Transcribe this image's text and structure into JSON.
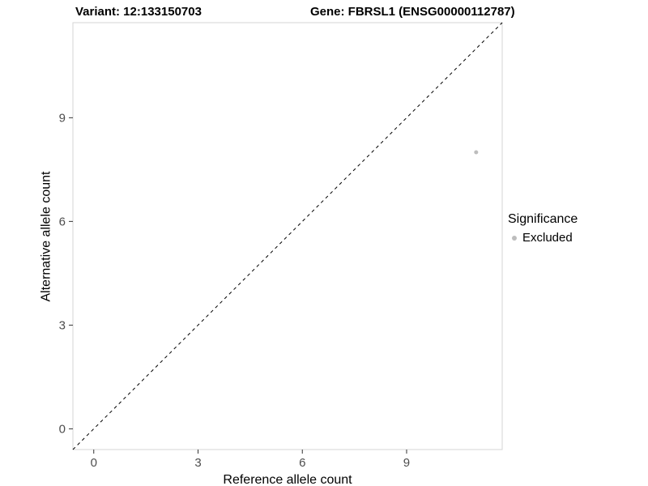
{
  "chart_data": {
    "type": "scatter",
    "title_left": "Variant: 12:133150703",
    "title_right": "Gene: FBRSL1 (ENSG00000112787)",
    "xlabel": "Reference allele count",
    "ylabel": "Alternative allele count",
    "xlim": [
      -0.6,
      11.75
    ],
    "ylim": [
      -0.6,
      11.75
    ],
    "xticks": [
      0,
      3,
      6,
      9
    ],
    "yticks": [
      0,
      3,
      6,
      9
    ],
    "grid": false,
    "points": [
      {
        "x": 11,
        "y": 8,
        "series": "Excluded"
      }
    ],
    "reference_line": {
      "type": "identity",
      "style": "dashed",
      "color": "#000000"
    },
    "legend": {
      "title": "Significance",
      "position": "right",
      "items": [
        {
          "label": "Excluded",
          "color": "#bdbdbd",
          "marker": "circle"
        }
      ]
    },
    "point_color": "#bdbdbd",
    "point_radius": 2.5,
    "panel_border_color": "#d4d4d4",
    "tick_color": "#4d4d4d",
    "tick_mark_color": "#333333",
    "background": "#ffffff"
  }
}
